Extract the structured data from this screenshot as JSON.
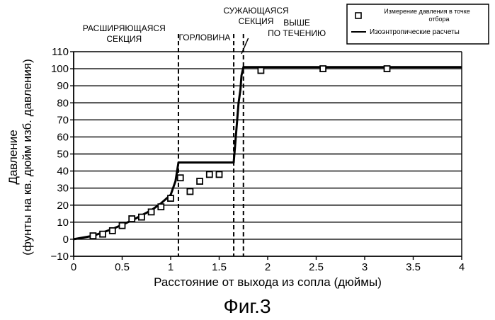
{
  "figure_label": "Фиг.3",
  "chart_data": {
    "type": "line",
    "xlabel": "Расстояние от выхода из сопла (дюймы)",
    "ylabel_line1": "Давление",
    "ylabel_line2": "(фунты на кв. дюйм изб. давления)",
    "xlim": [
      0,
      4
    ],
    "ylim": [
      -10,
      110
    ],
    "xticks": [
      0,
      0.5,
      1,
      1.5,
      2,
      2.5,
      3,
      3.5,
      4
    ],
    "xtick_labels": [
      "0",
      "0.5",
      "1",
      "1.5",
      "2",
      "2.5",
      "3",
      "3.5",
      "4"
    ],
    "yticks": [
      -10,
      0,
      10,
      20,
      30,
      40,
      50,
      60,
      70,
      80,
      90,
      100,
      110
    ],
    "ytick_labels": [
      "−10",
      "0",
      "10",
      "20",
      "30",
      "40",
      "50",
      "60",
      "70",
      "80",
      "90",
      "100",
      "110"
    ],
    "horizontal_grid": true,
    "section_boundaries": [
      1.08,
      1.65,
      1.75
    ],
    "regions": [
      {
        "lines": [
          "РАСШИРЯЮЩАЯСЯ",
          "СЕКЦИЯ"
        ],
        "x_center": 0.52
      },
      {
        "lines": [
          "ГОРЛОВИНА"
        ],
        "x_center": 1.35
      },
      {
        "lines": [
          "СУЖАЮЩАЯСЯ",
          "СЕКЦИЯ"
        ],
        "x_center": 1.88
      },
      {
        "lines": [
          "ВЫШЕ",
          "ПО ТЕЧЕНИЮ"
        ],
        "x_center": 2.3
      }
    ],
    "legend": {
      "position": "top-right",
      "markers_label_line1": "Измерение давления в точке",
      "markers_label_line2": "отбора",
      "line_label": "Изоэнтропические расчеты"
    },
    "series": [
      {
        "name": "Изоэнтропические расчеты",
        "kind": "line",
        "x": [
          0,
          0.2,
          0.4,
          0.6,
          0.8,
          0.9,
          1.0,
          1.05,
          1.08,
          1.65,
          1.66,
          1.7,
          1.72,
          1.73,
          1.75,
          2.0,
          2.5,
          3.0,
          3.5,
          4.0
        ],
        "y": [
          0,
          2,
          6,
          11,
          17,
          21,
          26,
          34,
          45,
          45,
          52,
          80,
          88,
          96,
          101,
          101,
          101,
          101,
          101,
          101
        ]
      },
      {
        "name": "Измерение давления в точке отбора",
        "kind": "markers",
        "x": [
          0.2,
          0.3,
          0.4,
          0.5,
          0.6,
          0.7,
          0.8,
          0.9,
          1.0,
          1.1,
          1.2,
          1.3,
          1.4,
          1.5,
          1.93,
          2.57,
          3.23
        ],
        "y": [
          2,
          3,
          5,
          8,
          12,
          13,
          16,
          19,
          24,
          36,
          28,
          34,
          38,
          38,
          99,
          100,
          100
        ]
      }
    ]
  }
}
